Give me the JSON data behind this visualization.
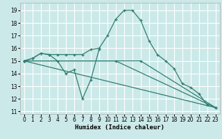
{
  "xlabel": "Humidex (Indice chaleur)",
  "bg_color": "#cce9e9",
  "grid_color": "#ffffff",
  "line_color": "#2e7d6e",
  "xlim": [
    -0.5,
    23.5
  ],
  "ylim": [
    10.8,
    19.6
  ],
  "xticks": [
    0,
    1,
    2,
    3,
    4,
    5,
    6,
    7,
    8,
    9,
    10,
    11,
    12,
    13,
    14,
    15,
    16,
    17,
    18,
    19,
    20,
    21,
    22,
    23
  ],
  "yticks": [
    11,
    12,
    13,
    14,
    15,
    16,
    17,
    18,
    19
  ],
  "series1_x": [
    0,
    1,
    2,
    3,
    4,
    5,
    6,
    7,
    8,
    9
  ],
  "series1_y": [
    15.0,
    15.2,
    15.6,
    15.5,
    15.0,
    14.0,
    14.3,
    12.0,
    13.5,
    15.9
  ],
  "series2_x": [
    0,
    1,
    2,
    3,
    4,
    5,
    6,
    7,
    8,
    9,
    10,
    11,
    12,
    13,
    14,
    15,
    16,
    17,
    18,
    19,
    20,
    21,
    22
  ],
  "series2_y": [
    15.0,
    15.2,
    15.6,
    15.5,
    15.5,
    15.5,
    15.5,
    15.5,
    15.9,
    16.0,
    17.0,
    18.3,
    19.0,
    19.0,
    18.2,
    16.6,
    15.5,
    15.0,
    14.4,
    13.2,
    12.9,
    12.4,
    11.5
  ],
  "series3_x": [
    0,
    23
  ],
  "series3_y": [
    15.0,
    11.3
  ],
  "series4_x": [
    0,
    11,
    23
  ],
  "series4_y": [
    15.0,
    15.0,
    11.3
  ],
  "series5_x": [
    0,
    14,
    23
  ],
  "series5_y": [
    15.0,
    15.0,
    11.3
  ]
}
